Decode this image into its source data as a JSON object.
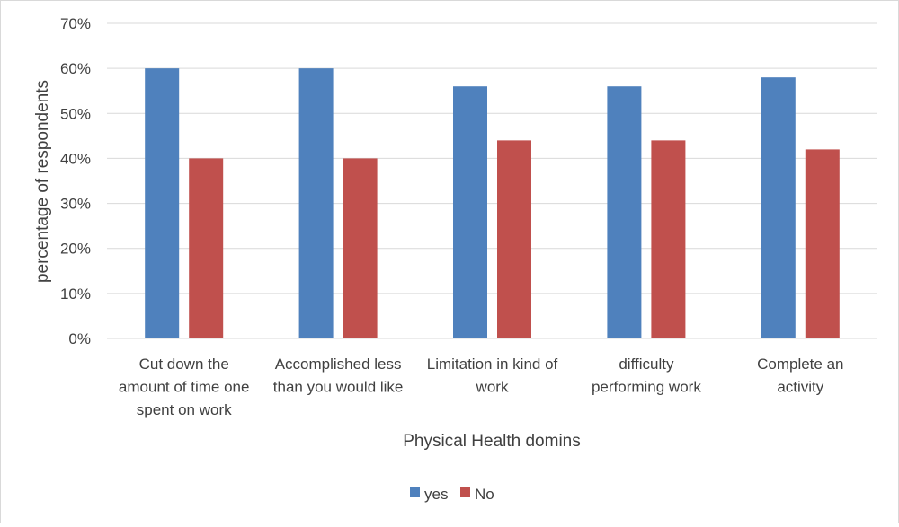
{
  "chart_data": {
    "type": "bar",
    "title": "",
    "xlabel": "Physical Health domins",
    "ylabel": "percentage of respondents",
    "ylim": [
      0,
      70
    ],
    "y_ticks": [
      0,
      10,
      20,
      30,
      40,
      50,
      60,
      70
    ],
    "y_tick_labels": [
      "0%",
      "10%",
      "20%",
      "30%",
      "40%",
      "50%",
      "60%",
      "70%"
    ],
    "categories": [
      [
        "Cut down the",
        "amount of time one",
        "spent on work"
      ],
      [
        "Accomplished less",
        "than you would like"
      ],
      [
        "Limitation in kind of",
        "work"
      ],
      [
        "difficulty",
        "performing work"
      ],
      [
        "Complete an",
        "activity"
      ]
    ],
    "series": [
      {
        "name": "yes",
        "color": "#4f81bd",
        "values": [
          60,
          60,
          56,
          56,
          58
        ]
      },
      {
        "name": "No",
        "color": "#c0504d",
        "values": [
          40,
          40,
          44,
          44,
          42
        ]
      }
    ],
    "grid": true,
    "legend_position": "bottom"
  }
}
